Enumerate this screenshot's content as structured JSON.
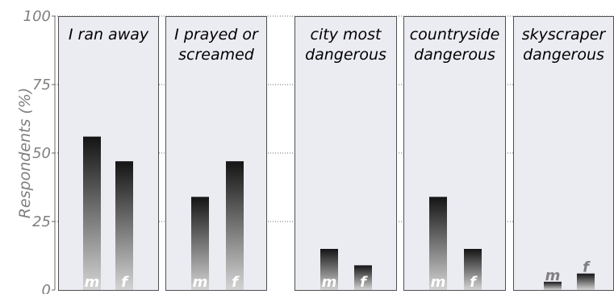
{
  "chart_data": {
    "type": "bar",
    "ylabel": "Respondents (%)",
    "ylim": [
      0,
      100
    ],
    "yticks": [
      "0",
      "25",
      "50",
      "75",
      "100"
    ],
    "grid": "dotted horizontal gridlines at 25, 50, 75, 100",
    "colors": {
      "panel_bg": "#ebebf2",
      "panel_border": "#505050",
      "bar_top": "#141414",
      "bar_bottom": "#d4d4d4",
      "tick_text": "#7f7f7f"
    },
    "categories": [
      "m",
      "f"
    ],
    "panels": [
      {
        "title": [
          "I ran away"
        ],
        "values": [
          56,
          47
        ]
      },
      {
        "title": [
          "I prayed or",
          "screamed"
        ],
        "values": [
          34,
          47
        ]
      },
      {
        "title": [
          "city most",
          "dangerous"
        ],
        "values": [
          15,
          9
        ]
      },
      {
        "title": [
          "countryside",
          "dangerous"
        ],
        "values": [
          34,
          15
        ]
      },
      {
        "title": [
          "skyscraper",
          "dangerous"
        ],
        "values": [
          3,
          6
        ]
      }
    ]
  }
}
